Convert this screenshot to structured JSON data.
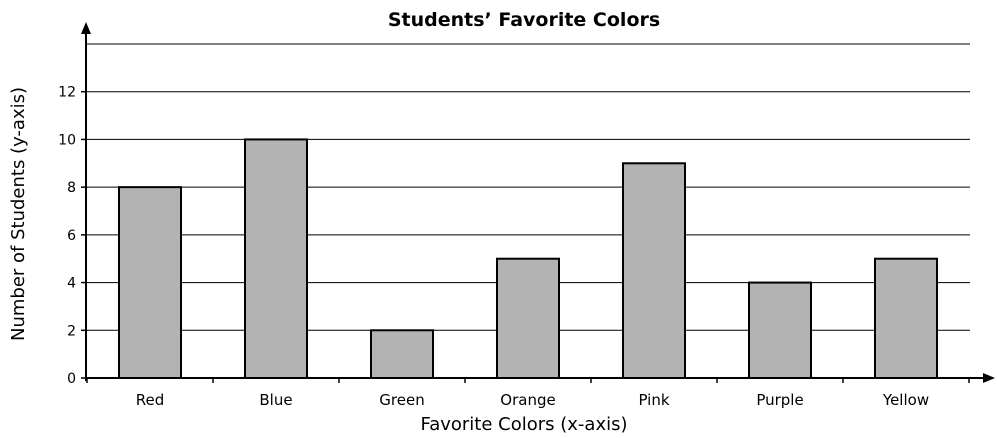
{
  "chart_data": {
    "type": "bar",
    "title": "Students’ Favorite Colors",
    "xlabel": "Favorite Colors (x-axis)",
    "ylabel": "Number of Students (y-axis)",
    "categories": [
      "Red",
      "Blue",
      "Green",
      "Orange",
      "Pink",
      "Purple",
      "Yellow"
    ],
    "values": [
      8,
      10,
      2,
      5,
      9,
      4,
      5
    ],
    "ylim": [
      0,
      14
    ],
    "yticks": [
      0,
      2,
      4,
      6,
      8,
      10,
      12
    ],
    "grid": true,
    "bar_color": "#b3b3b3",
    "bar_stroke": "#000000"
  }
}
